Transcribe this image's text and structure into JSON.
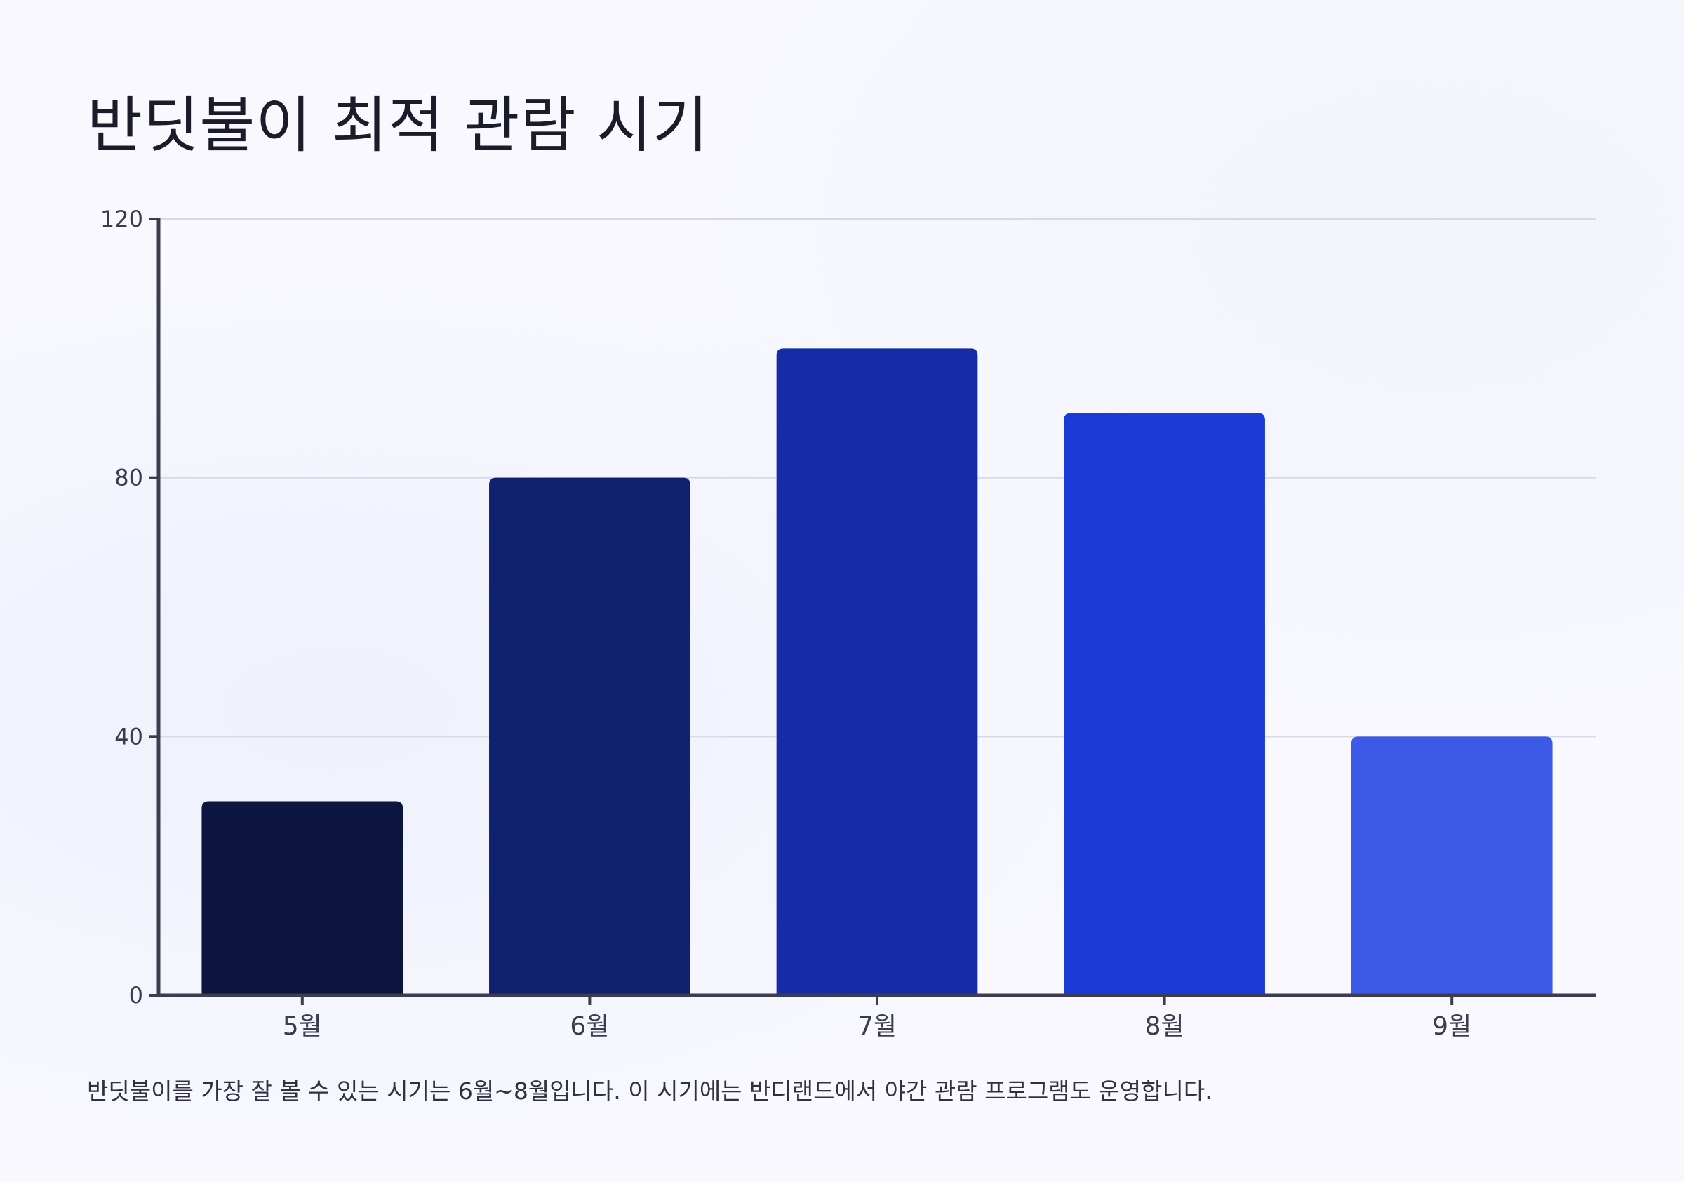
{
  "title": "반딧불이 최적 관람 시기",
  "caption": "반딧불이를 가장 잘 볼 수 있는 시기는 6월~8월입니다. 이 시기에는 반디랜드에서 야간 관람 프로그램도 운영합니다.",
  "colors": {
    "background": "#f8f8fe",
    "axis": "#3b3c4e",
    "grid": "#d6d8e4",
    "bars": [
      "#0b1540",
      "#10216f",
      "#162ca6",
      "#1b3bd6",
      "#3d5ae6"
    ]
  },
  "chart_data": {
    "type": "bar",
    "title": "반딧불이 최적 관람 시기",
    "categories": [
      "5월",
      "6월",
      "7월",
      "8월",
      "9월"
    ],
    "values": [
      30,
      80,
      100,
      90,
      40
    ],
    "ylim": [
      0,
      120
    ],
    "yticks": [
      0,
      40,
      80,
      120
    ],
    "ytick_labels": [
      "0",
      "40",
      "80",
      "120"
    ],
    "xlabel": "",
    "ylabel": "",
    "grid": true,
    "legend": false
  }
}
